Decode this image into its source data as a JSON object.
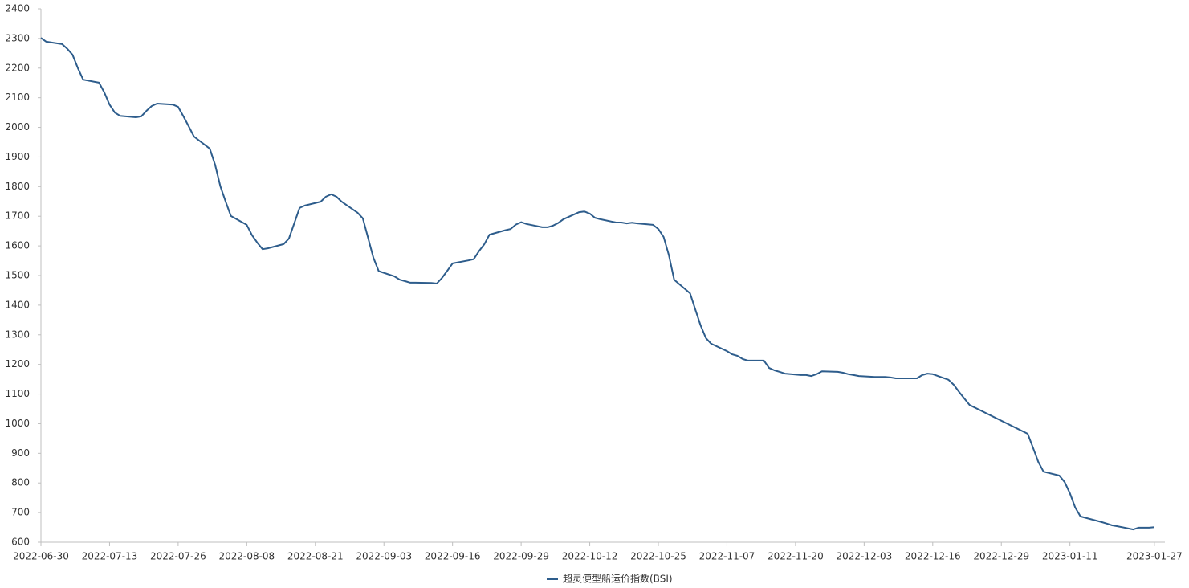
{
  "chart_data": {
    "type": "line",
    "x": [
      "2022-06-30",
      "2022-07-01",
      "2022-07-04",
      "2022-07-05",
      "2022-07-06",
      "2022-07-07",
      "2022-07-08",
      "2022-07-11",
      "2022-07-12",
      "2022-07-13",
      "2022-07-14",
      "2022-07-15",
      "2022-07-18",
      "2022-07-19",
      "2022-07-20",
      "2022-07-21",
      "2022-07-22",
      "2022-07-25",
      "2022-07-26",
      "2022-07-27",
      "2022-07-28",
      "2022-07-29",
      "2022-08-01",
      "2022-08-02",
      "2022-08-03",
      "2022-08-04",
      "2022-08-05",
      "2022-08-08",
      "2022-08-09",
      "2022-08-10",
      "2022-08-11",
      "2022-08-12",
      "2022-08-15",
      "2022-08-16",
      "2022-08-17",
      "2022-08-18",
      "2022-08-19",
      "2022-08-22",
      "2022-08-23",
      "2022-08-24",
      "2022-08-25",
      "2022-08-26",
      "2022-08-29",
      "2022-08-30",
      "2022-08-31",
      "2022-09-01",
      "2022-09-02",
      "2022-09-05",
      "2022-09-06",
      "2022-09-07",
      "2022-09-08",
      "2022-09-09",
      "2022-09-12",
      "2022-09-13",
      "2022-09-14",
      "2022-09-15",
      "2022-09-16",
      "2022-09-19",
      "2022-09-20",
      "2022-09-21",
      "2022-09-22",
      "2022-09-23",
      "2022-09-26",
      "2022-09-27",
      "2022-09-28",
      "2022-09-29",
      "2022-09-30",
      "2022-10-03",
      "2022-10-04",
      "2022-10-05",
      "2022-10-06",
      "2022-10-07",
      "2022-10-10",
      "2022-10-11",
      "2022-10-12",
      "2022-10-13",
      "2022-10-14",
      "2022-10-17",
      "2022-10-18",
      "2022-10-19",
      "2022-10-20",
      "2022-10-21",
      "2022-10-24",
      "2022-10-25",
      "2022-10-26",
      "2022-10-27",
      "2022-10-28",
      "2022-10-31",
      "2022-11-01",
      "2022-11-02",
      "2022-11-03",
      "2022-11-04",
      "2022-11-07",
      "2022-11-08",
      "2022-11-09",
      "2022-11-10",
      "2022-11-11",
      "2022-11-14",
      "2022-11-15",
      "2022-11-16",
      "2022-11-17",
      "2022-11-18",
      "2022-11-21",
      "2022-11-22",
      "2022-11-23",
      "2022-11-24",
      "2022-11-25",
      "2022-11-28",
      "2022-11-29",
      "2022-11-30",
      "2022-12-01",
      "2022-12-02",
      "2022-12-05",
      "2022-12-06",
      "2022-12-07",
      "2022-12-08",
      "2022-12-09",
      "2022-12-12",
      "2022-12-13",
      "2022-12-14",
      "2022-12-15",
      "2022-12-16",
      "2022-12-19",
      "2022-12-20",
      "2022-12-21",
      "2022-12-22",
      "2022-12-23",
      "2023-01-03",
      "2023-01-04",
      "2023-01-05",
      "2023-01-06",
      "2023-01-09",
      "2023-01-10",
      "2023-01-11",
      "2023-01-12",
      "2023-01-13",
      "2023-01-16",
      "2023-01-17",
      "2023-01-18",
      "2023-01-19",
      "2023-01-20",
      "2023-01-23",
      "2023-01-24",
      "2023-01-25",
      "2023-01-26",
      "2023-01-27"
    ],
    "series": [
      {
        "name": "超灵便型船运价指数(BSI)",
        "color": "#2e5d8c",
        "values": [
          2302,
          2289,
          2281,
          2265,
          2245,
          2200,
          2161,
          2151,
          2118,
          2077,
          2050,
          2039,
          2034,
          2037,
          2056,
          2072,
          2080,
          2077,
          2069,
          2037,
          2004,
          1969,
          1928,
          1874,
          1801,
          1750,
          1701,
          1671,
          1636,
          1611,
          1589,
          1592,
          1606,
          1625,
          1676,
          1728,
          1736,
          1749,
          1766,
          1774,
          1766,
          1749,
          1712,
          1693,
          1627,
          1560,
          1515,
          1497,
          1486,
          1481,
          1476,
          1476,
          1475,
          1473,
          1492,
          1516,
          1541,
          1551,
          1555,
          1582,
          1605,
          1638,
          1653,
          1657,
          1672,
          1680,
          1674,
          1663,
          1663,
          1668,
          1677,
          1690,
          1714,
          1716,
          1709,
          1695,
          1690,
          1679,
          1679,
          1676,
          1678,
          1676,
          1671,
          1657,
          1630,
          1568,
          1486,
          1440,
          1386,
          1332,
          1289,
          1270,
          1245,
          1234,
          1229,
          1218,
          1213,
          1213,
          1188,
          1180,
          1175,
          1169,
          1164,
          1164,
          1161,
          1167,
          1177,
          1175,
          1172,
          1167,
          1164,
          1161,
          1158,
          1158,
          1158,
          1156,
          1153,
          1153,
          1153,
          1164,
          1169,
          1167,
          1148,
          1131,
          1107,
          1085,
          1063,
          966,
          919,
          871,
          838,
          825,
          803,
          765,
          717,
          687,
          673,
          668,
          663,
          657,
          654,
          643,
          649,
          649,
          649,
          651
        ]
      }
    ],
    "xlim": [
      "2022-06-30",
      "2023-01-29"
    ],
    "xticks": [
      "2022-06-30",
      "2022-07-13",
      "2022-07-26",
      "2022-08-08",
      "2022-08-21",
      "2022-09-03",
      "2022-09-16",
      "2022-09-29",
      "2022-10-12",
      "2022-10-25",
      "2022-11-07",
      "2022-11-20",
      "2022-12-03",
      "2022-12-16",
      "2022-12-29",
      "2023-01-11",
      "2023-01-27"
    ],
    "ylim": [
      600,
      2400
    ],
    "yticks": [
      600,
      700,
      800,
      900,
      1000,
      1100,
      1200,
      1300,
      1400,
      1500,
      1600,
      1700,
      1800,
      1900,
      2000,
      2100,
      2200,
      2300,
      2400
    ],
    "legend": "bottom"
  }
}
